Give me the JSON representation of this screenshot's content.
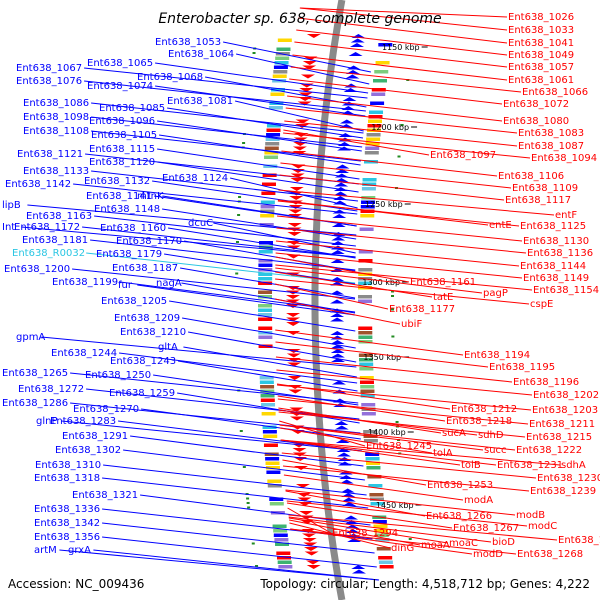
{
  "title": "Enterobacter sp. 638, complete genome",
  "footer": {
    "accession": "Accession: NC_009436",
    "topology": "Topology: circular; Length: 4,518,712 bp; Genes: 4,222"
  },
  "colors": {
    "forward": "#0000ff",
    "reverse": "#ff0000",
    "rna": "#2ac6e3",
    "backbone": "#8a8a8a",
    "tick": "#228b22"
  },
  "ruler_labels": [
    "1150 kbp",
    "1200 kbp",
    "1250 kbp",
    "1300 kbp",
    "1350 kbp",
    "1400 kbp",
    "1450 kbp"
  ],
  "left_labels": [
    "Ent638_1053",
    "Ent638_1064",
    "Ent638_1065",
    "Ent638_1067",
    "Ent638_1068",
    "Ent638_1076",
    "Ent638_1074",
    "Ent638_1081",
    "Ent638_1086",
    "Ent638_1085",
    "Ent638_1098",
    "Ent638_1096",
    "Ent638_1108",
    "Ent638_1105",
    "Ent638_1115",
    "Ent638_1121",
    "Ent638_1120",
    "Ent638_1133",
    "Ent638_1124",
    "Ent638_1142",
    "Ent638_1132",
    "Ent638_1141",
    "mtnK",
    "lipB",
    "Ent638_1148",
    "Ent638_1163",
    "Int",
    "Ent638_1172",
    "Ent638_1160",
    "dcuC",
    "Ent638_1181",
    "Ent638_1170",
    "Ent638_R0032",
    "Ent638_1179",
    "Ent638_1187",
    "Ent638_1200",
    "Ent638_1199",
    "fur",
    "nagA",
    "Ent638_1205",
    "Ent638_1209",
    "Ent638_1210",
    "gpmA",
    "gltA",
    "Ent638_1244",
    "Ent638_1243",
    "Ent638_1265",
    "Ent638_1250",
    "Ent638_1272",
    "Ent638_1259",
    "Ent638_1286",
    "Ent638_1270",
    "glnP",
    "Ent638_1283",
    "Ent638_1291",
    "Ent638_1302",
    "Ent638_1310",
    "Ent638_1318",
    "Ent638_1321",
    "Ent638_1336",
    "Ent638_1342",
    "Ent638_1356",
    "artM",
    "grxA"
  ],
  "right_labels": [
    "Ent638_1026",
    "Ent638_1033",
    "Ent638_1041",
    "Ent638_1049",
    "Ent638_1057",
    "Ent638_1061",
    "Ent638_1066",
    "Ent638_1072",
    "Ent638_1080",
    "Ent638_1083",
    "Ent638_1087",
    "Ent638_1097",
    "Ent638_1094",
    "Ent638_1106",
    "Ent638_1109",
    "Ent638_1117",
    "entF",
    "entE",
    "Ent638_1125",
    "Ent638_1130",
    "Ent638_1136",
    "Ent638_1144",
    "Ent638_1161",
    "Ent638_1149",
    "tatE",
    "pagP",
    "Ent638_1154",
    "cspE",
    "Ent638_1177",
    "ubiF",
    "Ent638_1194",
    "Ent638_1195",
    "Ent638_1196",
    "Ent638_1202",
    "Ent638_1212",
    "Ent638_1203",
    "Ent638_1218",
    "Ent638_1211",
    "sucA",
    "sdhD",
    "Ent638_1215",
    "Ent638_1245",
    "tolA",
    "succ",
    "Ent638_1222",
    "tolB",
    "Ent638_1231",
    "sdhA",
    "Ent638_1230",
    "Ent638_1253",
    "Ent638_1239",
    "modA",
    "Ent638_1266",
    "modB",
    "Ent638_1267",
    "modC",
    "Ent638_1260",
    "Ent638_1294",
    "moaA",
    "moaC",
    "bioD",
    "dinG",
    "modD",
    "Ent638_1268"
  ]
}
